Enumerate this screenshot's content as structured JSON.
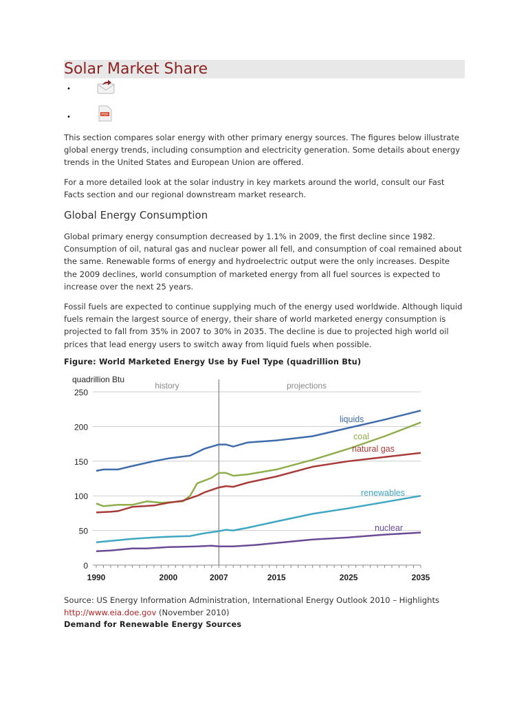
{
  "title": "Solar Market Share",
  "icons": [
    "email-share-icon",
    "pdf-icon"
  ],
  "intro": [
    "This section compares solar energy with other primary energy sources. The figures below illustrate global energy trends, including consumption and electricity generation. Some details about energy trends in the United States and European Union are offered.",
    "For a more detailed look at the solar industry in key markets around the world, consult our Fast Facts section and our regional downstream market research."
  ],
  "section_heading": "Global Energy Consumption",
  "body": [
    "Global primary energy consumption decreased by 1.1% in 2009, the first decline since 1982. Consumption of oil, natural gas and nuclear power all fell, and consumption of coal remained about the same. Renewable forms of energy and hydroelectric output were the only increases. Despite the 2009 declines, world consumption of marketed energy from all fuel sources is expected to increase over the next 25 years.",
    "Fossil fuels are expected to continue supplying much of the energy used worldwide. Although liquid fuels remain the largest source of energy, their share of world marketed energy consumption is projected to fall from 35% in 2007 to 30% in 2035. The decline is due to projected high world oil prices that lead energy users to switch away from liquid fuels when possible."
  ],
  "figure_caption": "Figure: World Marketed Energy Use by Fuel Type (quadrillion Btu)",
  "source": {
    "text": "Source: US Energy Information Administration, International Energy Outlook 2010 – Highlights",
    "link": "http://www.eia.doe.gov",
    "date": " (November 2010)"
  },
  "next_heading": "Demand for Renewable Energy Sources",
  "chart_data": {
    "type": "line",
    "ylabel": "quadrillion Btu",
    "ylim": [
      0,
      250
    ],
    "xlim": [
      1990,
      2035
    ],
    "yticks": [
      "0",
      "50",
      "100",
      "150",
      "200",
      "250"
    ],
    "xticks": [
      "1990",
      "2000",
      "2007",
      "2015",
      "2025",
      "2035"
    ],
    "grid": true,
    "annotations": {
      "divider_year": 2007,
      "left": "history",
      "right": "projections"
    },
    "series": [
      {
        "name": "liquids",
        "color": "#3e6bab",
        "x": [
          1990,
          1991,
          1993,
          1995,
          1998,
          2000,
          2003,
          2005,
          2007,
          2008,
          2009,
          2011,
          2015,
          2020,
          2025,
          2030,
          2035
        ],
        "y": [
          136,
          138,
          138,
          143,
          150,
          154,
          158,
          168,
          174,
          174,
          171,
          177,
          180,
          186,
          198,
          210,
          223
        ]
      },
      {
        "name": "coal",
        "color": "#8fad4a",
        "x": [
          1990,
          1991,
          1993,
          1995,
          1997,
          1999,
          2002,
          2003,
          2004,
          2005,
          2006,
          2007,
          2008,
          2009,
          2011,
          2015,
          2020,
          2025,
          2030,
          2035
        ],
        "y": [
          89,
          85,
          87,
          87,
          92,
          90,
          92,
          100,
          118,
          122,
          126,
          133,
          133,
          129,
          131,
          138,
          152,
          168,
          186,
          206
        ]
      },
      {
        "name": "natural gas",
        "color": "#a83a38",
        "x": [
          1990,
          1992,
          1993,
          1995,
          1998,
          2000,
          2002,
          2004,
          2005,
          2007,
          2008,
          2009,
          2011,
          2015,
          2020,
          2025,
          2030,
          2035
        ],
        "y": [
          76,
          77,
          78,
          84,
          86,
          90,
          93,
          100,
          105,
          112,
          114,
          113,
          119,
          128,
          142,
          150,
          156,
          162
        ],
        "label_y": 160
      },
      {
        "name": "renewables",
        "color": "#3ea6c2",
        "x": [
          1990,
          1993,
          1995,
          1998,
          2000,
          2003,
          2005,
          2007,
          2008,
          2009,
          2011,
          2015,
          2020,
          2025,
          2030,
          2035
        ],
        "y": [
          33,
          36,
          38,
          40,
          41,
          42,
          46,
          49,
          51,
          50,
          54,
          63,
          74,
          82,
          91,
          100
        ]
      },
      {
        "name": "nuclear",
        "color": "#6a4996",
        "x": [
          1990,
          1992,
          1995,
          1997,
          2000,
          2004,
          2006,
          2007,
          2009,
          2012,
          2015,
          2020,
          2025,
          2030,
          2035
        ],
        "y": [
          20,
          21,
          24,
          24,
          26,
          27,
          28,
          27,
          27,
          29,
          32,
          37,
          40,
          44,
          47
        ]
      }
    ]
  }
}
